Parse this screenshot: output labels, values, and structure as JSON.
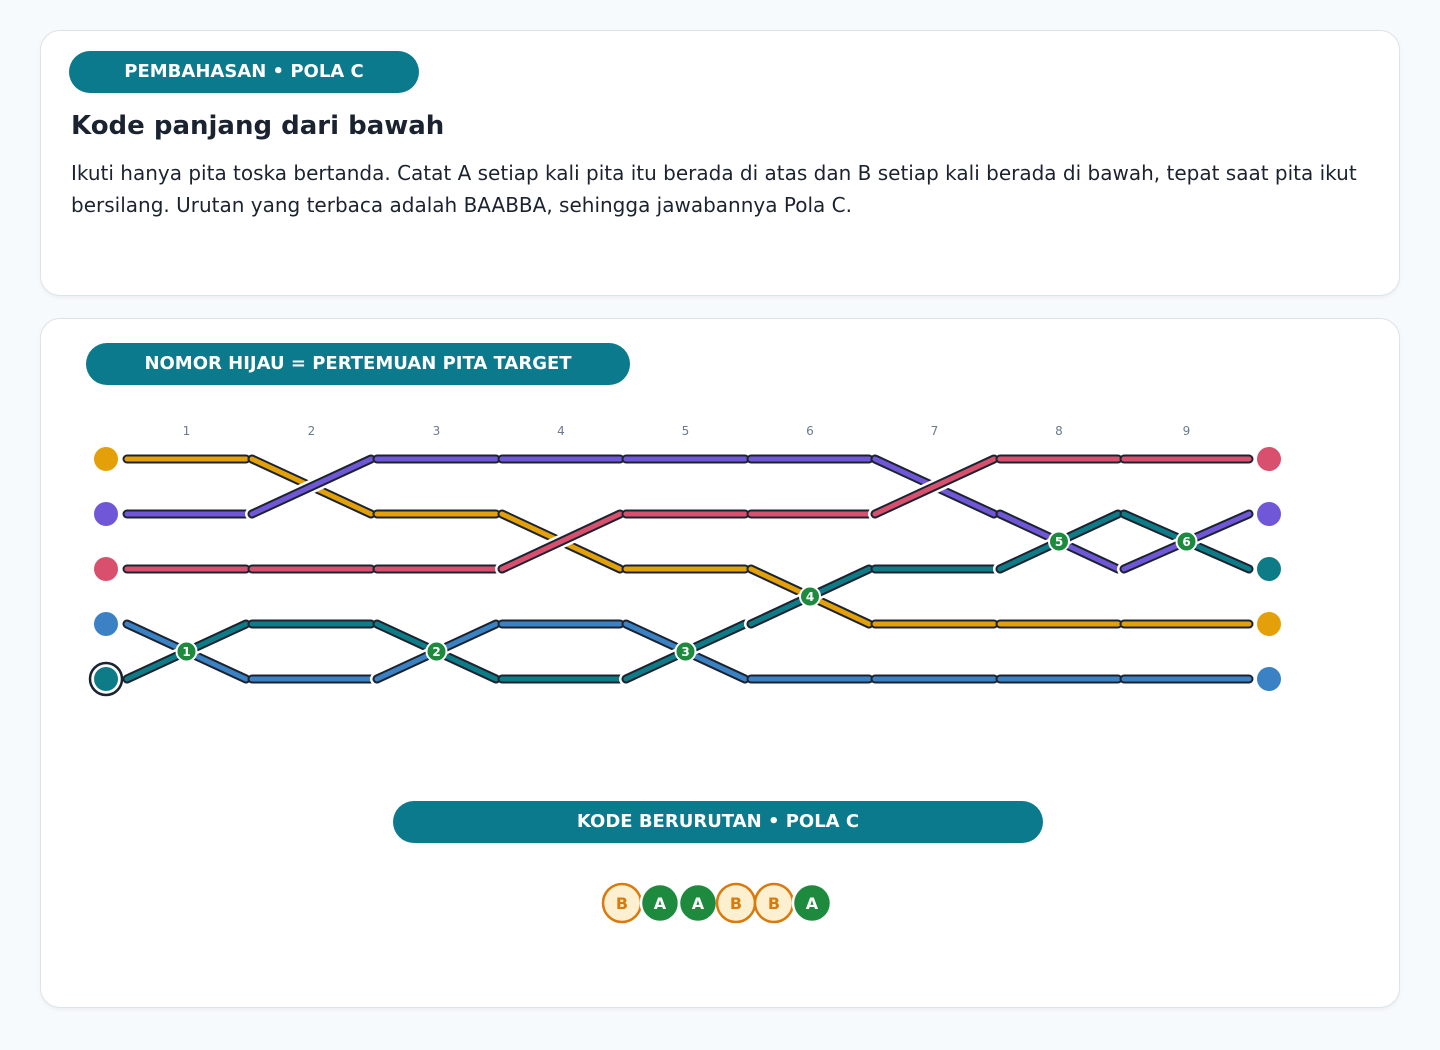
{
  "explanation": {
    "badge": "PEMBAHASAN • POLA C",
    "title": "Kode panjang dari bawah",
    "text": "Ikuti hanya pita toska bertanda. Catat A setiap kali pita itu berada di atas dan B setiap kali berada di bawah, tepat saat pita ikut bersilang. Urutan yang terbaca adalah BAABBA, sehingga jawabannya Pola C."
  },
  "diagram": {
    "badge": "NOMOR HIJAU = PERTEMUAN PITA TARGET",
    "columns": [
      1,
      2,
      3,
      4,
      5,
      6,
      7,
      8,
      9
    ],
    "crossings": [
      1,
      2,
      3,
      4,
      5,
      6
    ],
    "code_badge": "KODE BERURUTAN • POLA C",
    "code": [
      "B",
      "A",
      "A",
      "B",
      "B",
      "A"
    ]
  }
}
